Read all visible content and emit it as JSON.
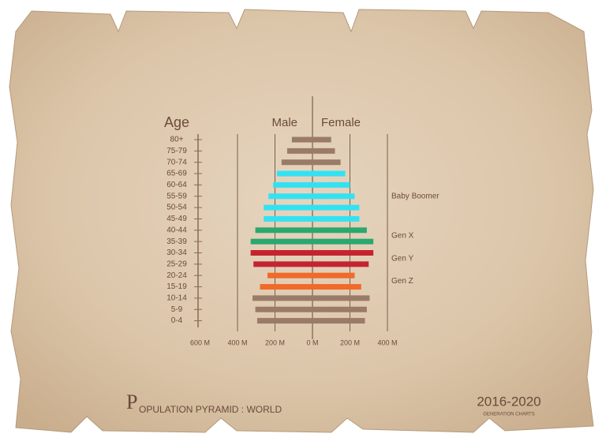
{
  "chart_data": {
    "type": "pyramid",
    "title": "POPULATION PYRAMID : WORLD",
    "subtitle": "2016-2020",
    "caption": "GENERATION CHARTS",
    "y_label": "Age",
    "categories": [
      "80+",
      "75-79",
      "70-74",
      "65-69",
      "60-64",
      "55-59",
      "50-54",
      "45-49",
      "40-44",
      "35-39",
      "30-34",
      "25-29",
      "20-24",
      "15-19",
      "10-14",
      "5-9",
      "0-4"
    ],
    "colors": [
      "#9a7b68",
      "#9a7b68",
      "#9a7b68",
      "#33e2f2",
      "#33e2f2",
      "#33e2f2",
      "#33e2f2",
      "#33e2f2",
      "#2aa86e",
      "#2aa86e",
      "#c4242f",
      "#c4242f",
      "#f06a2a",
      "#f06a2a",
      "#9a7b68",
      "#9a7b68",
      "#9a7b68"
    ],
    "annotations": [
      {
        "text": "Baby Boomer",
        "color": "#33e2f2"
      },
      {
        "text": "Gen X",
        "color": "#2aa86e"
      },
      {
        "text": "Gen Y",
        "color": "#c4242f"
      },
      {
        "text": "Gen Z",
        "color": "#f06a2a"
      }
    ],
    "series": [
      {
        "name": "Male",
        "side": "left",
        "xlim": [
          0,
          600
        ],
        "xticks": [
          {
            "value": 600,
            "label": "600 M"
          },
          {
            "value": 400,
            "label": "400 M"
          },
          {
            "value": 200,
            "label": "200 M"
          },
          {
            "value": 0,
            "label": "0 M"
          }
        ],
        "values": [
          110,
          135,
          165,
          190,
          210,
          235,
          260,
          260,
          305,
          330,
          330,
          315,
          240,
          280,
          320,
          305,
          295
        ]
      },
      {
        "name": "Female",
        "side": "right",
        "xlim": [
          0,
          400
        ],
        "xticks": [
          {
            "value": 200,
            "label": "200 M"
          },
          {
            "value": 400,
            "label": "400 M"
          }
        ],
        "values": [
          100,
          120,
          150,
          175,
          200,
          225,
          250,
          250,
          290,
          325,
          325,
          300,
          225,
          260,
          305,
          290,
          280
        ]
      }
    ],
    "grid": true
  }
}
